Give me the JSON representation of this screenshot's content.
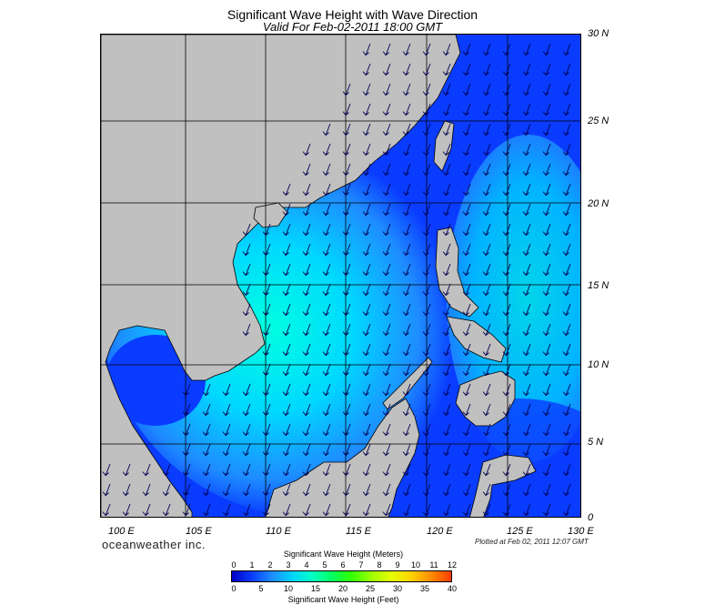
{
  "title": "Significant Wave Height with Wave Direction",
  "subtitle": "Valid For Feb-02-2011 18:00 GMT",
  "lat_labels": [
    "30 N",
    "25 N",
    "20 N",
    "15 N",
    "10 N",
    "5 N",
    "0"
  ],
  "lon_labels": [
    "100 E",
    "105 E",
    "110 E",
    "115 E",
    "120 E",
    "125 E",
    "130 E"
  ],
  "credit": "oceanweather inc.",
  "plotted": "Plotted at Feb 02, 2011 12:07 GMT",
  "legend": {
    "meters_title": "Significant Wave Height (Meters)",
    "feet_title": "Significant Wave Height (Feet)",
    "meters_ticks": [
      "0",
      "1",
      "2",
      "3",
      "4",
      "5",
      "6",
      "7",
      "8",
      "9",
      "10",
      "11",
      "12"
    ],
    "feet_ticks": [
      "0",
      "5",
      "10",
      "15",
      "20",
      "25",
      "30",
      "35",
      "40"
    ],
    "colors": [
      "#0000c8",
      "#0a3cff",
      "#1e8cff",
      "#00d2ff",
      "#00ffc8",
      "#00ff64",
      "#32ff00",
      "#a0ff00",
      "#e6ff00",
      "#ffd200",
      "#ff8c00",
      "#ff3c00"
    ]
  },
  "colors": {
    "land": "#c0c0c0",
    "deep_water": "#0a2bd6",
    "mid_water": "#1e7fff",
    "high_water": "#00e6ff",
    "arrow": "#000050"
  }
}
